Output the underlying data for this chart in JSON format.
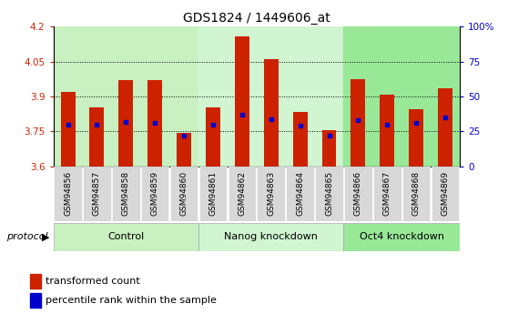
{
  "title": "GDS1824 / 1449606_at",
  "samples": [
    "GSM94856",
    "GSM94857",
    "GSM94858",
    "GSM94859",
    "GSM94860",
    "GSM94861",
    "GSM94862",
    "GSM94863",
    "GSM94864",
    "GSM94865",
    "GSM94866",
    "GSM94867",
    "GSM94868",
    "GSM94869"
  ],
  "transformed_count": [
    3.92,
    3.855,
    3.97,
    3.97,
    3.745,
    3.855,
    4.16,
    4.06,
    3.835,
    3.755,
    3.975,
    3.91,
    3.845,
    3.935
  ],
  "percentile_rank_normalized": [
    0.3,
    0.3,
    0.32,
    0.31,
    0.22,
    0.3,
    0.37,
    0.34,
    0.29,
    0.22,
    0.33,
    0.3,
    0.31,
    0.35
  ],
  "groups": [
    {
      "label": "Control",
      "start": 0,
      "end": 5,
      "color": "#c8f0c0"
    },
    {
      "label": "Nanog knockdown",
      "start": 5,
      "end": 10,
      "color": "#d0f5d0"
    },
    {
      "label": "Oct4 knockdown",
      "start": 10,
      "end": 14,
      "color": "#98e898"
    }
  ],
  "ymin": 3.6,
  "ymax": 4.2,
  "yticks": [
    3.6,
    3.75,
    3.9,
    4.05,
    4.2
  ],
  "ytick_labels": [
    "3.6",
    "3.75",
    "3.9",
    "4.05",
    "4.2"
  ],
  "y2ticks": [
    0,
    25,
    50,
    75,
    100
  ],
  "bar_color": "#cc2200",
  "dot_color": "#0000cc",
  "bar_width": 0.5,
  "legend1": "transformed count",
  "legend2": "percentile rank within the sample",
  "tick_label_color_left": "#cc2200",
  "tick_label_color_right": "#0000cc",
  "xtick_bg": "#d8d8d8"
}
